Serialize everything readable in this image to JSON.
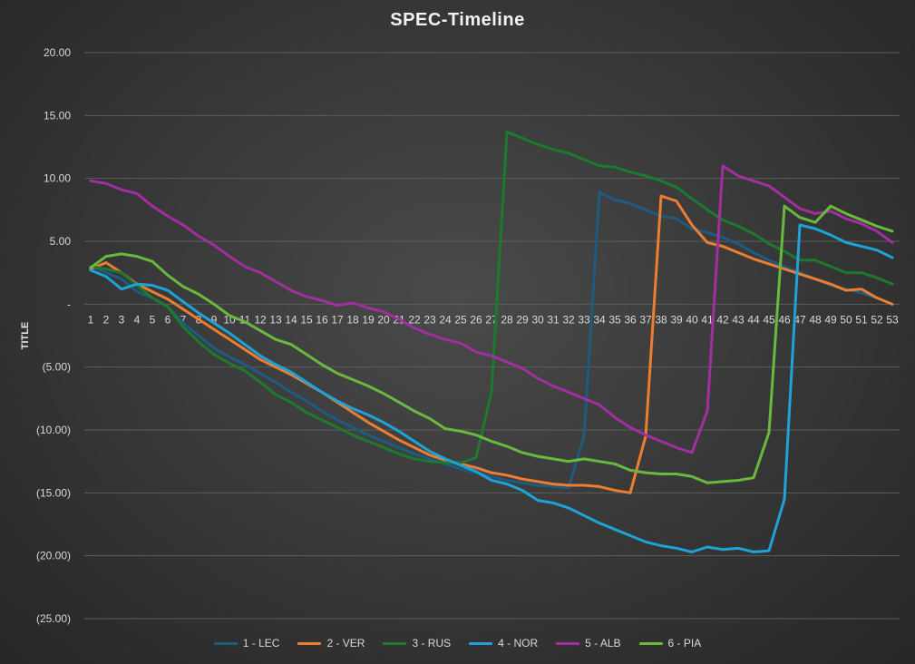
{
  "chart_data": {
    "type": "line",
    "title": "SPEC-Timeline",
    "xlabel": "",
    "ylabel": "TITLE",
    "ylim": [
      -25,
      20
    ],
    "y_ticks": [
      {
        "value": 20,
        "label": "20.00"
      },
      {
        "value": 15,
        "label": "15.00"
      },
      {
        "value": 10,
        "label": "10.00"
      },
      {
        "value": 5,
        "label": "5.00"
      },
      {
        "value": 0,
        "label": "-"
      },
      {
        "value": -5,
        "label": "(5.00)"
      },
      {
        "value": -10,
        "label": "(10.00)"
      },
      {
        "value": -15,
        "label": "(15.00)"
      },
      {
        "value": -20,
        "label": "(20.00)"
      },
      {
        "value": -25,
        "label": "(25.00)"
      }
    ],
    "categories": [
      "1",
      "2",
      "3",
      "4",
      "5",
      "6",
      "7",
      "8",
      "9",
      "10",
      "11",
      "12",
      "13",
      "14",
      "15",
      "16",
      "17",
      "18",
      "19",
      "20",
      "21",
      "22",
      "23",
      "24",
      "25",
      "26",
      "27",
      "28",
      "29",
      "30",
      "31",
      "32",
      "33",
      "34",
      "35",
      "36",
      "37",
      "38",
      "39",
      "40",
      "41",
      "42",
      "43",
      "44",
      "45",
      "46",
      "47",
      "48",
      "49",
      "50",
      "51",
      "52",
      "53"
    ],
    "grid": true,
    "legend_position": "bottom",
    "series": [
      {
        "name": "1 - LEC",
        "color": "#1f5a80",
        "values": [
          3.0,
          2.5,
          2.0,
          1.0,
          0.5,
          -0.2,
          -1.5,
          -2.5,
          -3.5,
          -4.2,
          -4.8,
          -5.5,
          -6.2,
          -7.0,
          -7.7,
          -8.5,
          -9.2,
          -9.8,
          -10.4,
          -10.9,
          -11.4,
          -11.9,
          -12.3,
          -12.7,
          -13.1,
          -13.4,
          -13.7,
          -14.0,
          -14.2,
          -14.4,
          -14.5,
          -14.6,
          -10.5,
          8.9,
          8.3,
          8.0,
          7.5,
          7.0,
          6.8,
          6.0,
          5.7,
          5.3,
          4.8,
          4.1,
          3.5,
          3.0,
          2.5,
          2.0,
          1.5,
          1.2,
          0.9,
          0.5,
          0.0
        ]
      },
      {
        "name": "2 - VER",
        "color": "#ed7d31",
        "values": [
          2.8,
          3.3,
          2.5,
          1.6,
          1.0,
          0.4,
          -0.4,
          -1.2,
          -2.0,
          -2.8,
          -3.6,
          -4.4,
          -5.0,
          -5.6,
          -6.3,
          -7.0,
          -7.8,
          -8.6,
          -9.4,
          -10.1,
          -10.8,
          -11.4,
          -12.0,
          -12.4,
          -12.7,
          -13.0,
          -13.4,
          -13.6,
          -13.9,
          -14.1,
          -14.3,
          -14.4,
          -14.4,
          -14.5,
          -14.8,
          -15.0,
          -10.5,
          8.6,
          8.2,
          6.3,
          4.9,
          4.6,
          4.1,
          3.6,
          3.2,
          2.8,
          2.4,
          2.0,
          1.6,
          1.1,
          1.2,
          0.5,
          0.0
        ]
      },
      {
        "name": "3 - RUS",
        "color": "#1c7a2e",
        "values": [
          3.0,
          2.8,
          2.5,
          1.5,
          0.5,
          -0.2,
          -1.8,
          -3.0,
          -4.0,
          -4.7,
          -5.3,
          -6.2,
          -7.2,
          -7.8,
          -8.6,
          -9.2,
          -9.8,
          -10.4,
          -10.9,
          -11.4,
          -11.9,
          -12.3,
          -12.5,
          -12.6,
          -12.6,
          -12.2,
          -7.0,
          13.7,
          13.2,
          12.7,
          12.3,
          12.0,
          11.5,
          11.0,
          10.9,
          10.5,
          10.2,
          9.8,
          9.3,
          8.4,
          7.5,
          6.7,
          6.2,
          5.6,
          4.8,
          4.2,
          3.5,
          3.5,
          3.0,
          2.5,
          2.5,
          2.1,
          1.6
        ]
      },
      {
        "name": "4 - NOR",
        "color": "#1ea3d8",
        "values": [
          2.7,
          2.2,
          1.2,
          1.6,
          1.5,
          1.1,
          0.2,
          -0.7,
          -1.5,
          -2.3,
          -3.2,
          -4.1,
          -4.8,
          -5.4,
          -6.2,
          -7.0,
          -7.7,
          -8.3,
          -8.8,
          -9.4,
          -10.1,
          -10.9,
          -11.7,
          -12.3,
          -12.8,
          -13.3,
          -14.0,
          -14.3,
          -14.8,
          -15.6,
          -15.8,
          -16.2,
          -16.8,
          -17.4,
          -17.9,
          -18.4,
          -18.9,
          -19.2,
          -19.4,
          -19.7,
          -19.3,
          -19.5,
          -19.4,
          -19.7,
          -19.6,
          -15.5,
          6.3,
          6.0,
          5.5,
          4.9,
          4.6,
          4.3,
          3.7
        ]
      },
      {
        "name": "5 - ALB",
        "color": "#a02fa0",
        "values": [
          9.8,
          9.6,
          9.1,
          8.8,
          7.8,
          7.0,
          6.3,
          5.4,
          4.7,
          3.8,
          3.0,
          2.5,
          1.8,
          1.1,
          0.6,
          0.3,
          -0.1,
          0.1,
          -0.3,
          -0.6,
          -1.2,
          -1.9,
          -2.4,
          -2.8,
          -3.1,
          -3.8,
          -4.1,
          -4.6,
          -5.1,
          -5.9,
          -6.5,
          -7.0,
          -7.5,
          -8.0,
          -9.0,
          -9.8,
          -10.4,
          -10.9,
          -11.4,
          -11.8,
          -8.5,
          11.0,
          10.2,
          9.8,
          9.4,
          8.5,
          7.6,
          7.2,
          7.4,
          6.8,
          6.4,
          5.8,
          4.9
        ]
      },
      {
        "name": "6 - PIA",
        "color": "#6ab93f",
        "values": [
          2.9,
          3.8,
          4.0,
          3.8,
          3.4,
          2.3,
          1.4,
          0.8,
          0.0,
          -0.9,
          -1.4,
          -2.1,
          -2.8,
          -3.2,
          -4.0,
          -4.8,
          -5.5,
          -6.0,
          -6.5,
          -7.1,
          -7.8,
          -8.5,
          -9.1,
          -9.9,
          -10.1,
          -10.4,
          -10.9,
          -11.3,
          -11.8,
          -12.1,
          -12.3,
          -12.5,
          -12.3,
          -12.5,
          -12.7,
          -13.2,
          -13.4,
          -13.5,
          -13.5,
          -13.7,
          -14.2,
          -14.1,
          -14.0,
          -13.8,
          -10.2,
          7.8,
          6.9,
          6.5,
          7.8,
          7.2,
          6.7,
          6.2,
          5.8
        ]
      }
    ]
  }
}
